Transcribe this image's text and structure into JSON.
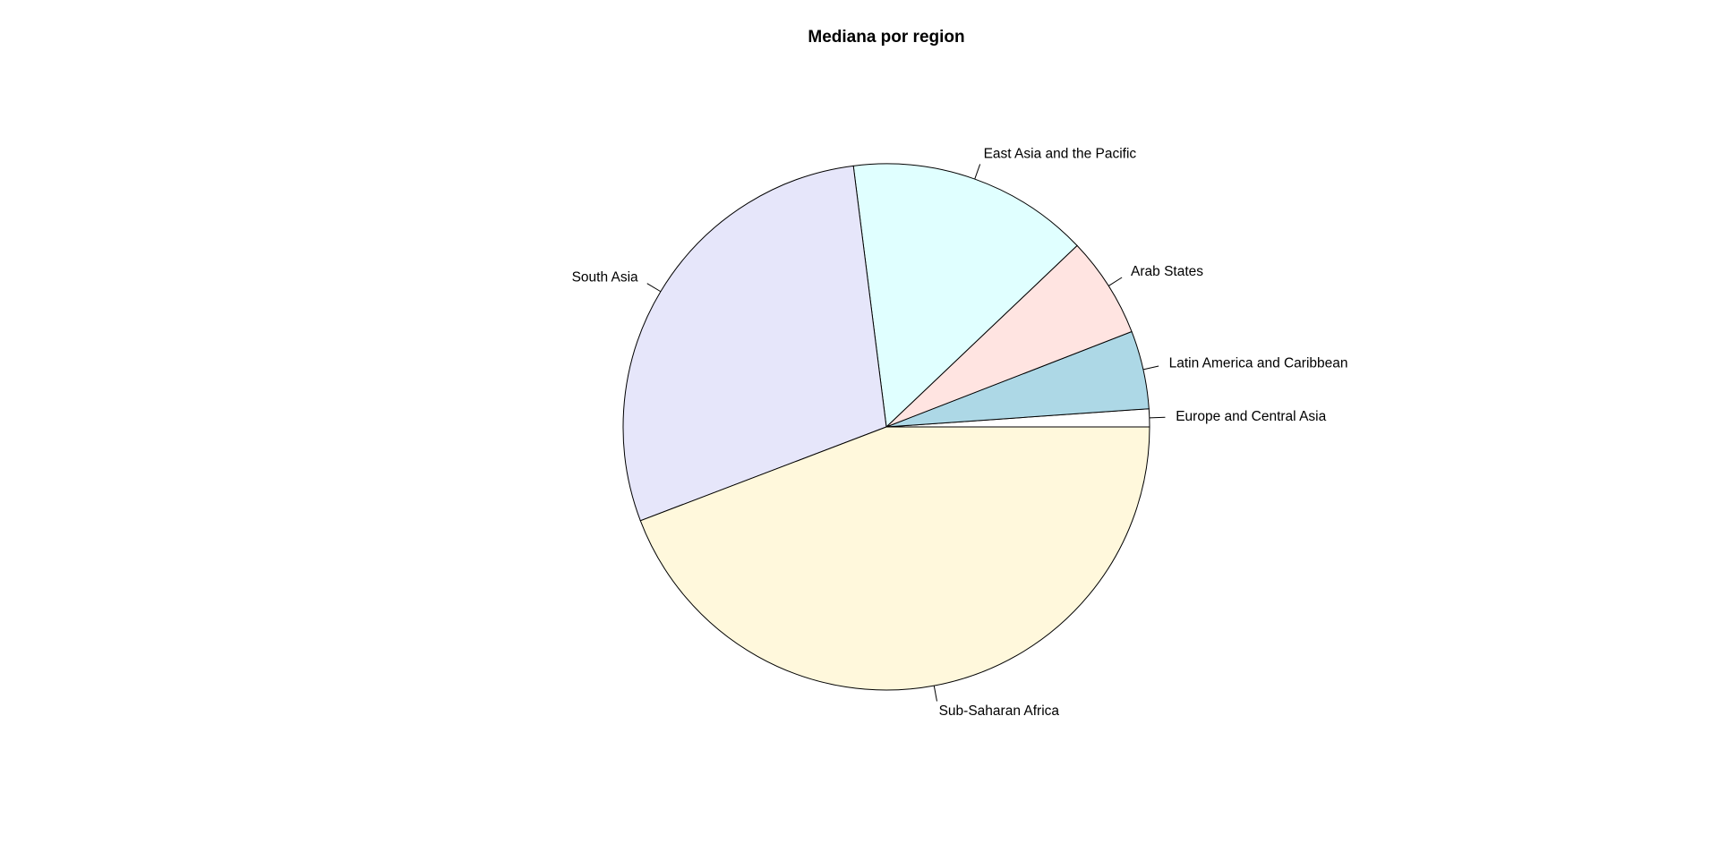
{
  "chart_data": {
    "type": "pie",
    "title": "Mediana por region",
    "start_angle_deg": 0,
    "direction": "counterclockwise",
    "slices": [
      {
        "label": "Europe and Central Asia",
        "value": 1.1,
        "color": "#ffffff"
      },
      {
        "label": "Latin America and Caribbean",
        "value": 4.8,
        "color": "#add8e6"
      },
      {
        "label": "Arab States",
        "value": 6.2,
        "color": "#ffe4e1"
      },
      {
        "label": "East Asia and the Pacific",
        "value": 14.9,
        "color": "#e0ffff"
      },
      {
        "label": "South Asia",
        "value": 28.8,
        "color": "#e6e6fa"
      },
      {
        "label": "Sub-Saharan Africa",
        "value": 44.2,
        "color": "#fff8dc"
      }
    ]
  }
}
